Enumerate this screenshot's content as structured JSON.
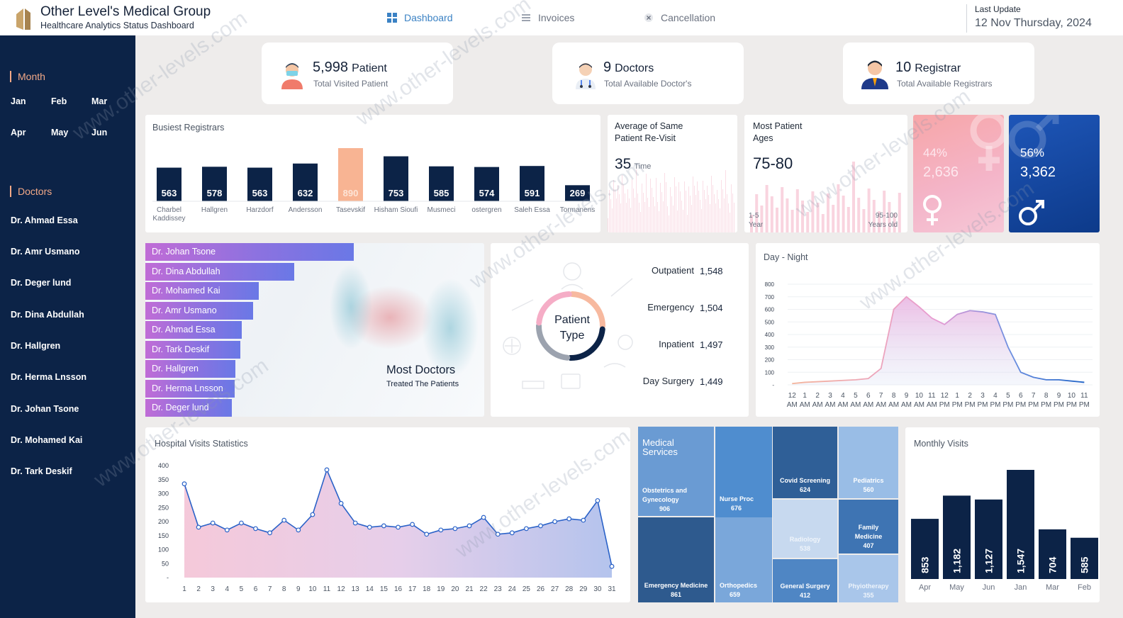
{
  "header": {
    "title": "Other Level's Medical Group",
    "subtitle": "Healthcare Analytics Status Dashboard",
    "nav": [
      {
        "label": "Dashboard",
        "icon": "dashboard-icon"
      },
      {
        "label": "Invoices",
        "icon": "invoice-icon"
      },
      {
        "label": "Cancellation",
        "icon": "close-icon"
      }
    ],
    "last_update_label": "Last Update",
    "last_update_value": "12 Nov Thursday, 2024"
  },
  "sidebar": {
    "month_title": "Month",
    "months": [
      "Jan",
      "Feb",
      "Mar",
      "Apr",
      "May",
      "Jun"
    ],
    "doctors_title": "Doctors",
    "doctors": [
      "Dr. Ahmad Essa",
      "Dr. Amr Usmano",
      "Dr. Deger lund",
      "Dr. Dina Abdullah",
      "Dr. Hallgren",
      "Dr. Herma Lnsson",
      "Dr. Johan Tsone",
      "Dr. Mohamed Kai",
      "Dr. Tark Deskif"
    ]
  },
  "kpis": [
    {
      "value": "5,998",
      "unit": "Patient",
      "label": "Total Visited Patient",
      "icon": "patient-icon"
    },
    {
      "value": "9",
      "unit": "Doctors",
      "label": "Total Available Doctor's",
      "icon": "doctor-icon"
    },
    {
      "value": "10",
      "unit": "Registrar",
      "label": "Total Available Registrars",
      "icon": "registrar-icon"
    }
  ],
  "busiest": {
    "title": "Busiest Registrars",
    "chart_data": {
      "type": "bar",
      "categories": [
        "Charbel Kaddissey",
        "Hallgren",
        "Harzdorf",
        "Andersson",
        "Tasevskif",
        "Hisham Sioufi",
        "Musmeci",
        "ostergren",
        "Saleh Essa",
        "Tormanens"
      ],
      "values": [
        563,
        578,
        563,
        632,
        890,
        753,
        585,
        574,
        591,
        269
      ],
      "highlight_index": 4
    }
  },
  "revisit": {
    "title_l1": "Average of Same",
    "title_l2": "Patient Re-Visit",
    "value": "35",
    "unit": "Time"
  },
  "ages": {
    "title_l1": "Most Patient",
    "title_l2": "Ages",
    "value": "75-80",
    "min_l1": "1-5",
    "min_l2": "Year",
    "max_l1": "95-100",
    "max_l2": "Years old"
  },
  "gender": {
    "female": {
      "pct": "44%",
      "count": "2,636",
      "icon": "female-icon"
    },
    "male": {
      "pct": "56%",
      "count": "3,362",
      "icon": "male-icon"
    }
  },
  "most_doctors": {
    "title": "Most Doctors",
    "subtitle": "Treated The Patients",
    "chart_data": {
      "type": "bar",
      "categories": [
        "Dr. Johan Tsone",
        "Dr. Dina Abdullah",
        "Dr. Mohamed Kai",
        "Dr. Amr Usmano",
        "Dr. Ahmad Essa",
        "Dr. Tark Deskif",
        "Dr. Hallgren",
        "Dr. Herma Lnsson",
        "Dr. Deger lund"
      ],
      "values": [
        294,
        210,
        160,
        152,
        136,
        134,
        127,
        126,
        122
      ]
    }
  },
  "patient_type": {
    "center_l1": "Patient",
    "center_l2": "Type",
    "chart_data": {
      "type": "pie",
      "categories": [
        "Outpatient",
        "Emergency",
        "Inpatient",
        "Day Surgery"
      ],
      "values": [
        1548,
        1504,
        1497,
        1449
      ],
      "colors": [
        "#f4b49a",
        "#0c2347",
        "#9ca3af",
        "#f3a6c0"
      ]
    },
    "labels": [
      {
        "name": "Outpatient",
        "value": "1,548"
      },
      {
        "name": "Emergency",
        "value": "1,504"
      },
      {
        "name": "Inpatient",
        "value": "1,497"
      },
      {
        "name": "Day Surgery",
        "value": "1,449"
      }
    ]
  },
  "day_night": {
    "title": "Day - Night",
    "chart_data": {
      "type": "area",
      "x_top": [
        "12",
        "1",
        "2",
        "3",
        "4",
        "5",
        "6",
        "7",
        "8",
        "9",
        "10",
        "11",
        "12",
        "1",
        "2",
        "3",
        "4",
        "5",
        "6",
        "7",
        "8",
        "9",
        "10",
        "11"
      ],
      "x_bottom": [
        "AM",
        "AM",
        "AM",
        "AM",
        "AM",
        "AM",
        "AM",
        "AM",
        "AM",
        "AM",
        "AM",
        "AM",
        "PM",
        "PM",
        "PM",
        "PM",
        "PM",
        "PM",
        "PM",
        "PM",
        "PM",
        "PM",
        "PM",
        "PM"
      ],
      "values": [
        10,
        20,
        25,
        30,
        35,
        40,
        50,
        130,
        600,
        700,
        620,
        530,
        480,
        560,
        590,
        580,
        560,
        300,
        100,
        60,
        40,
        40,
        30,
        20
      ],
      "yticks": [
        "800",
        "700",
        "600",
        "500",
        "400",
        "300",
        "200",
        "100",
        "-"
      ],
      "ylim": [
        0,
        800
      ]
    }
  },
  "visits": {
    "title": "Hospital Visits Statistics",
    "chart_data": {
      "type": "area",
      "x": [
        "1",
        "2",
        "3",
        "4",
        "5",
        "6",
        "7",
        "8",
        "9",
        "10",
        "11",
        "12",
        "13",
        "14",
        "15",
        "16",
        "17",
        "18",
        "19",
        "20",
        "21",
        "22",
        "23",
        "24",
        "25",
        "26",
        "27",
        "28",
        "29",
        "30",
        "31"
      ],
      "values": [
        335,
        180,
        195,
        170,
        195,
        175,
        160,
        205,
        170,
        225,
        385,
        265,
        195,
        180,
        185,
        180,
        190,
        155,
        170,
        175,
        185,
        215,
        155,
        160,
        175,
        185,
        200,
        210,
        205,
        275,
        40
      ],
      "yticks": [
        "400",
        "350",
        "300",
        "250",
        "200",
        "150",
        "100",
        "50",
        "-"
      ],
      "ylim": [
        0,
        400
      ]
    }
  },
  "medical_services": {
    "title": "Medical Services",
    "items": [
      {
        "name": "Obstetrics and Gynecology",
        "value": "906"
      },
      {
        "name": "Nurse Proc",
        "value": "676"
      },
      {
        "name": "Covid Screening",
        "value": "624"
      },
      {
        "name": "Pediatrics",
        "value": "560"
      },
      {
        "name": "Radiology",
        "value": "538"
      },
      {
        "name": "Family Medicine",
        "value": "407"
      },
      {
        "name": "Emergency Medicine",
        "value": "861"
      },
      {
        "name": "Orthopedics",
        "value": "659"
      },
      {
        "name": "General Surgery",
        "value": "412"
      },
      {
        "name": "Phyiotherapy",
        "value": "355"
      }
    ]
  },
  "monthly": {
    "title": "Monthly Visits",
    "chart_data": {
      "type": "bar",
      "categories": [
        "Apr",
        "May",
        "Jun",
        "Jan",
        "Mar",
        "Feb"
      ],
      "values": [
        853,
        1182,
        1127,
        1547,
        704,
        585
      ],
      "labels": [
        "853",
        "1,182",
        "1,127",
        "1,547",
        "704",
        "585"
      ]
    }
  },
  "watermark": "www.other-levels.com"
}
